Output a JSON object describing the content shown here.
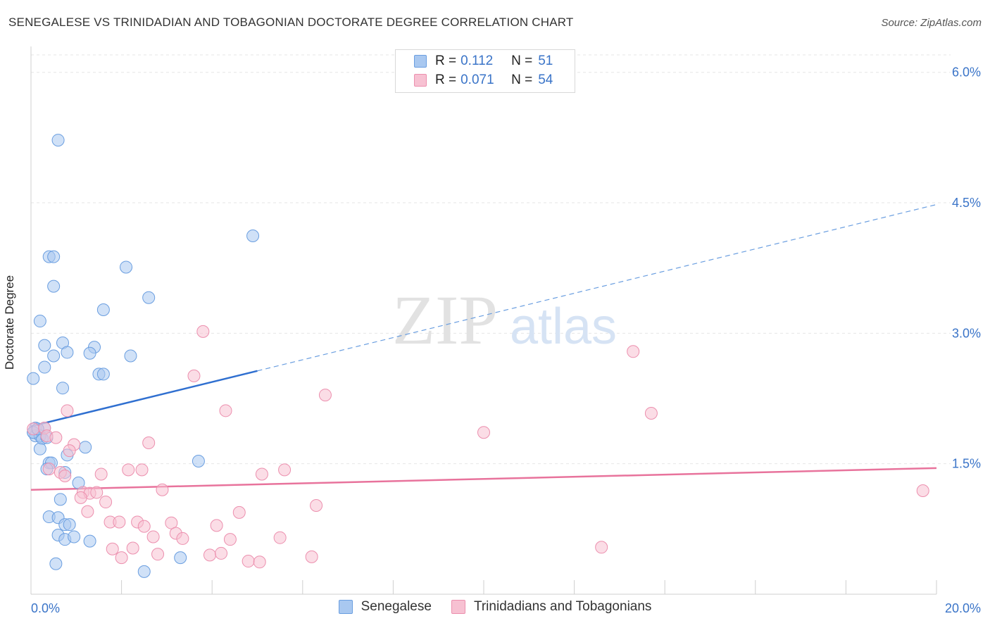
{
  "header": {
    "title": "SENEGALESE VS TRINIDADIAN AND TOBAGONIAN DOCTORATE DEGREE CORRELATION CHART",
    "source": "Source: ZipAtlas.com"
  },
  "watermark": {
    "zip": "ZIP",
    "atlas": "atlas"
  },
  "legend": {
    "rows": [
      {
        "r_label": "R =",
        "r_value": "0.112",
        "n_label": "N =",
        "n_value": "51",
        "color": "#a9c8f0",
        "border": "#6a9ee0"
      },
      {
        "r_label": "R =",
        "r_value": "0.071",
        "n_label": "N =",
        "n_value": "54",
        "color": "#f7c1d2",
        "border": "#ec8fae"
      }
    ]
  },
  "bottom_legend": {
    "items": [
      {
        "label": "Senegalese",
        "color": "#a9c8f0",
        "border": "#6a9ee0"
      },
      {
        "label": "Trinidadians and Tobagonians",
        "color": "#f7c1d2",
        "border": "#ec8fae"
      }
    ]
  },
  "chart_data": {
    "type": "scatter",
    "title": "SENEGALESE VS TRINIDADIAN AND TOBAGONIAN DOCTORATE DEGREE CORRELATION CHART",
    "xlabel": "",
    "ylabel": "Doctorate Degree",
    "xlim": [
      0,
      20
    ],
    "ylim": [
      0,
      6.2
    ],
    "x_tick_labels": [
      {
        "value": 0,
        "label": "0.0%"
      },
      {
        "value": 20,
        "label": "20.0%"
      }
    ],
    "y_ticks": [
      {
        "value": 1.5,
        "label": "1.5%"
      },
      {
        "value": 3.0,
        "label": "3.0%"
      },
      {
        "value": 4.5,
        "label": "4.5%"
      },
      {
        "value": 6.0,
        "label": "6.0%"
      }
    ],
    "grid": true,
    "series": [
      {
        "name": "Senegalese",
        "color": "#6a9ee0",
        "fill": "#a9c8f0",
        "points": [
          [
            0.6,
            5.22
          ],
          [
            4.9,
            4.12
          ],
          [
            0.4,
            3.88
          ],
          [
            0.5,
            3.88
          ],
          [
            2.1,
            3.76
          ],
          [
            0.5,
            3.54
          ],
          [
            2.6,
            3.41
          ],
          [
            1.6,
            3.27
          ],
          [
            0.2,
            3.14
          ],
          [
            0.7,
            2.89
          ],
          [
            0.3,
            2.86
          ],
          [
            1.4,
            2.84
          ],
          [
            0.8,
            2.78
          ],
          [
            1.3,
            2.77
          ],
          [
            0.5,
            2.74
          ],
          [
            2.2,
            2.74
          ],
          [
            0.3,
            2.61
          ],
          [
            1.5,
            2.53
          ],
          [
            1.6,
            2.53
          ],
          [
            0.05,
            2.48
          ],
          [
            0.7,
            2.37
          ],
          [
            0.1,
            1.91
          ],
          [
            0.3,
            1.91
          ],
          [
            0.05,
            1.86
          ],
          [
            0.1,
            1.82
          ],
          [
            0.2,
            1.82
          ],
          [
            0.25,
            1.79
          ],
          [
            0.2,
            1.67
          ],
          [
            1.2,
            1.69
          ],
          [
            0.8,
            1.6
          ],
          [
            3.7,
            1.53
          ],
          [
            0.4,
            1.51
          ],
          [
            0.45,
            1.51
          ],
          [
            0.35,
            1.44
          ],
          [
            0.75,
            1.4
          ],
          [
            1.05,
            1.28
          ],
          [
            0.65,
            1.09
          ],
          [
            0.4,
            0.89
          ],
          [
            0.6,
            0.88
          ],
          [
            0.75,
            0.8
          ],
          [
            0.85,
            0.8
          ],
          [
            0.6,
            0.68
          ],
          [
            0.75,
            0.63
          ],
          [
            0.95,
            0.66
          ],
          [
            1.3,
            0.61
          ],
          [
            3.3,
            0.42
          ],
          [
            0.55,
            0.35
          ],
          [
            2.5,
            0.26
          ],
          [
            0.05,
            1.86
          ],
          [
            0.15,
            1.9
          ],
          [
            0.35,
            1.8
          ]
        ]
      },
      {
        "name": "Trinidadians and Tobagonians",
        "color": "#ec8fae",
        "fill": "#f7c1d2",
        "points": [
          [
            0.05,
            1.9
          ],
          [
            3.8,
            3.02
          ],
          [
            13.3,
            2.79
          ],
          [
            3.6,
            2.51
          ],
          [
            6.5,
            2.29
          ],
          [
            4.3,
            2.11
          ],
          [
            13.7,
            2.08
          ],
          [
            0.8,
            2.11
          ],
          [
            10.0,
            1.86
          ],
          [
            0.3,
            1.91
          ],
          [
            0.35,
            1.82
          ],
          [
            0.55,
            1.8
          ],
          [
            2.6,
            1.74
          ],
          [
            0.95,
            1.72
          ],
          [
            0.85,
            1.65
          ],
          [
            0.4,
            1.44
          ],
          [
            2.15,
            1.43
          ],
          [
            2.45,
            1.43
          ],
          [
            5.6,
            1.43
          ],
          [
            0.65,
            1.4
          ],
          [
            1.55,
            1.38
          ],
          [
            5.1,
            1.38
          ],
          [
            0.75,
            1.36
          ],
          [
            2.9,
            1.2
          ],
          [
            1.15,
            1.17
          ],
          [
            1.3,
            1.16
          ],
          [
            1.45,
            1.17
          ],
          [
            1.1,
            1.11
          ],
          [
            1.65,
            1.06
          ],
          [
            6.3,
            1.02
          ],
          [
            1.25,
            0.95
          ],
          [
            4.6,
            0.94
          ],
          [
            1.75,
            0.83
          ],
          [
            1.95,
            0.83
          ],
          [
            2.35,
            0.83
          ],
          [
            3.1,
            0.82
          ],
          [
            2.5,
            0.78
          ],
          [
            4.1,
            0.79
          ],
          [
            3.2,
            0.7
          ],
          [
            2.7,
            0.66
          ],
          [
            3.35,
            0.64
          ],
          [
            4.4,
            0.63
          ],
          [
            5.5,
            0.65
          ],
          [
            12.6,
            0.54
          ],
          [
            1.8,
            0.52
          ],
          [
            2.25,
            0.53
          ],
          [
            2.8,
            0.46
          ],
          [
            3.95,
            0.45
          ],
          [
            4.2,
            0.47
          ],
          [
            2.0,
            0.42
          ],
          [
            6.2,
            0.43
          ],
          [
            4.8,
            0.38
          ],
          [
            5.05,
            0.37
          ],
          [
            19.7,
            1.19
          ]
        ]
      }
    ],
    "trend_lines": [
      {
        "series": "Senegalese",
        "x0": 0,
        "y0": 1.93,
        "x_solid_end": 5.0,
        "x1": 20,
        "y1": 4.48,
        "style": "solid then dashed"
      },
      {
        "series": "Trinidadians and Tobagonians",
        "x0": 0,
        "y0": 1.2,
        "x1": 20,
        "y1": 1.45,
        "style": "solid"
      }
    ]
  }
}
